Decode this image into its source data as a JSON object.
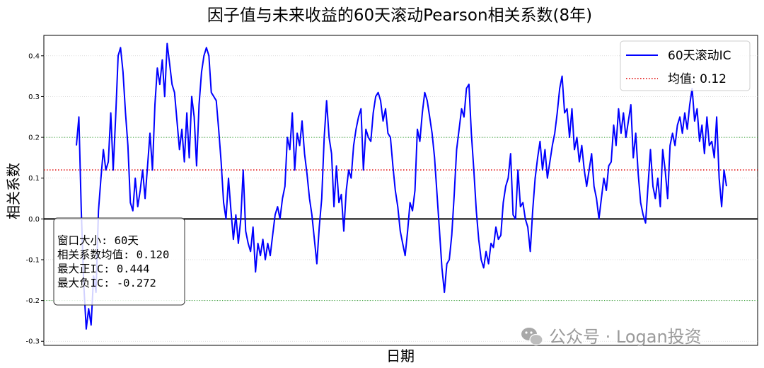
{
  "chart_data": {
    "type": "line",
    "title": "因子值与未来收益的60天滚动Pearson相关系数(8年)",
    "xlabel": "日期",
    "ylabel": "相关系数",
    "ylim": [
      -0.31,
      0.45
    ],
    "y_ticks": [
      -0.3,
      -0.2,
      -0.1,
      0.0,
      0.1,
      0.2,
      0.3,
      0.4
    ],
    "y_tick_labels": [
      "-0.3",
      "-0.2",
      "-0.1",
      "0.0",
      "0.1",
      "0.2",
      "0.3",
      "0.4"
    ],
    "x_ticks_visible": false,
    "grid": "horizontal-dotted",
    "reference_lines": [
      {
        "y": 0.0,
        "style": "solid",
        "color": "#000000"
      },
      {
        "y": 0.2,
        "style": "dotted",
        "color": "#2ca02c"
      },
      {
        "y": -0.2,
        "style": "dotted",
        "color": "#2ca02c"
      },
      {
        "y": 0.12,
        "style": "dotted",
        "color": "#e00000"
      }
    ],
    "series": [
      {
        "name": "60天滚动IC",
        "color": "#0000ff",
        "values": [
          0.18,
          0.25,
          0.02,
          -0.16,
          -0.27,
          -0.22,
          -0.26,
          -0.14,
          -0.18,
          0.02,
          0.1,
          0.17,
          0.12,
          0.14,
          0.26,
          0.12,
          0.25,
          0.4,
          0.42,
          0.36,
          0.26,
          0.18,
          0.04,
          0.02,
          0.1,
          0.03,
          0.07,
          0.12,
          0.05,
          0.13,
          0.21,
          0.12,
          0.28,
          0.37,
          0.33,
          0.39,
          0.3,
          0.43,
          0.38,
          0.33,
          0.31,
          0.24,
          0.17,
          0.22,
          0.14,
          0.26,
          0.15,
          0.3,
          0.25,
          0.13,
          0.28,
          0.36,
          0.4,
          0.42,
          0.4,
          0.31,
          0.3,
          0.29,
          0.22,
          0.14,
          0.04,
          0.0,
          0.1,
          0.02,
          -0.05,
          0.01,
          -0.06,
          0.0,
          0.12,
          -0.03,
          -0.06,
          -0.08,
          -0.02,
          -0.13,
          -0.06,
          -0.09,
          -0.05,
          -0.1,
          -0.06,
          -0.09,
          -0.04,
          0.01,
          0.03,
          0.0,
          0.05,
          0.08,
          0.2,
          0.17,
          0.26,
          0.12,
          0.21,
          0.18,
          0.24,
          0.16,
          0.11,
          0.05,
          0.01,
          -0.05,
          -0.11,
          -0.02,
          0.05,
          0.2,
          0.29,
          0.2,
          0.16,
          0.03,
          0.13,
          0.04,
          0.06,
          -0.03,
          0.07,
          0.12,
          0.1,
          0.18,
          0.22,
          0.25,
          0.27,
          0.12,
          0.22,
          0.2,
          0.19,
          0.26,
          0.3,
          0.31,
          0.29,
          0.24,
          0.27,
          0.21,
          0.2,
          0.13,
          0.07,
          0.03,
          -0.03,
          -0.06,
          -0.09,
          -0.03,
          0.04,
          0.02,
          0.07,
          0.22,
          0.19,
          0.26,
          0.31,
          0.29,
          0.25,
          0.21,
          0.15,
          0.06,
          -0.03,
          -0.12,
          -0.18,
          -0.11,
          -0.1,
          -0.04,
          0.06,
          0.17,
          0.22,
          0.27,
          0.25,
          0.32,
          0.33,
          0.21,
          0.12,
          0.02,
          -0.05,
          -0.1,
          -0.12,
          -0.08,
          -0.11,
          -0.06,
          -0.07,
          -0.02,
          -0.05,
          -0.04,
          0.04,
          0.08,
          0.1,
          0.16,
          0.01,
          0.0,
          0.12,
          0.03,
          0.04,
          0.0,
          -0.02,
          -0.08,
          0.02,
          0.1,
          0.15,
          0.19,
          0.12,
          0.17,
          0.1,
          0.14,
          0.18,
          0.21,
          0.26,
          0.32,
          0.35,
          0.26,
          0.27,
          0.2,
          0.27,
          0.17,
          0.2,
          0.14,
          0.18,
          0.12,
          0.08,
          0.12,
          0.16,
          0.08,
          0.05,
          0.0,
          0.05,
          0.1,
          0.07,
          0.13,
          0.14,
          0.23,
          0.18,
          0.27,
          0.21,
          0.26,
          0.2,
          0.24,
          0.28,
          0.15,
          0.21,
          0.11,
          0.04,
          0.01,
          -0.01,
          0.08,
          0.17,
          0.08,
          0.05,
          0.1,
          0.03,
          0.17,
          0.12,
          0.05,
          0.18,
          0.21,
          0.18,
          0.23,
          0.25,
          0.21,
          0.26,
          0.22,
          0.28,
          0.32,
          0.24,
          0.27,
          0.19,
          0.23,
          0.16,
          0.25,
          0.18,
          0.19,
          0.15,
          0.25,
          0.1,
          0.03,
          0.12,
          0.08
        ]
      },
      {
        "name": "均值: 0.12",
        "color": "#e00000",
        "constant": 0.12
      }
    ],
    "legend": {
      "placement": "top-right",
      "entries": [
        {
          "label": "60天滚动IC",
          "color": "#0000ff",
          "style": "solid"
        },
        {
          "label": "均值: 0.12",
          "color": "#e00000",
          "style": "dotted"
        }
      ]
    },
    "annotation": {
      "placement": "bottom-left",
      "lines": [
        "窗口大小: 60天",
        "相关系数均值: 0.120",
        "最大正IC: 0.444",
        "最大负IC: -0.272"
      ]
    }
  },
  "watermark": {
    "text": "公众号 · Logan投资",
    "icon": "wechat-icon"
  }
}
